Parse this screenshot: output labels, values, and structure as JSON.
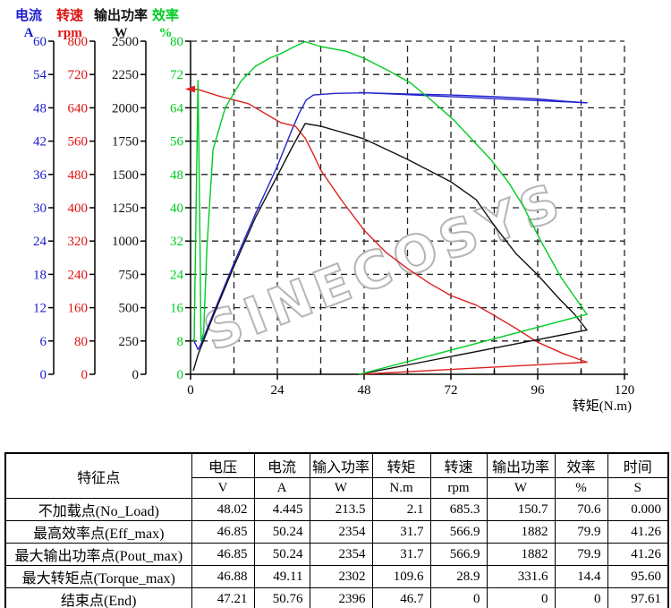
{
  "chart": {
    "watermark": "SINECOSYS",
    "x_axis": {
      "title": "转矩(N.m)",
      "max": 120,
      "major_step": 24,
      "minor_step": 12,
      "major_tick_labels": [
        "0",
        "24",
        "48",
        "72",
        "96",
        "120"
      ]
    },
    "y_axes": [
      {
        "name": "电流",
        "unit": "A",
        "color": "#1a1acc",
        "min": 0,
        "max": 60,
        "step": 6
      },
      {
        "name": "转速",
        "unit": "rpm",
        "color": "#dd1111",
        "min": 0,
        "max": 800,
        "step": 80
      },
      {
        "name": "输出功率",
        "unit": "W",
        "color": "#111111",
        "min": 0,
        "max": 2500,
        "step": 250
      },
      {
        "name": "效率",
        "unit": "%",
        "color": "#00cc22",
        "min": 0,
        "max": 80,
        "step": 8
      }
    ]
  },
  "chart_data": {
    "type": "line",
    "title": "",
    "xlabel": "转矩(N.m)",
    "x_range": [
      0,
      120
    ],
    "grid": "dashed grid every 12 N.m (x) and every 1/10 of full scale (y)",
    "legend_position": "none (axis labels on top-left, one colored axis per series)",
    "series": [
      {
        "name": "电流(A)",
        "axis": 0,
        "color": "#2222cc",
        "axis_range": [
          0,
          60
        ],
        "points": [
          [
            0.8,
            6.2
          ],
          [
            2.1,
            4.45
          ],
          [
            3,
            5.6
          ],
          [
            6,
            10.5
          ],
          [
            12,
            20
          ],
          [
            18,
            29
          ],
          [
            24,
            37.5
          ],
          [
            28,
            44
          ],
          [
            30,
            47
          ],
          [
            32,
            49.4
          ],
          [
            34,
            50.3
          ],
          [
            40,
            50.6
          ],
          [
            48,
            50.7
          ],
          [
            60,
            50.5
          ],
          [
            72,
            50.3
          ],
          [
            84,
            50.0
          ],
          [
            96,
            49.6
          ],
          [
            103,
            49.2
          ],
          [
            109.6,
            48.9
          ]
        ]
      },
      {
        "name": "电流(A) 回程",
        "axis": 0,
        "color": "#2222cc",
        "axis_range": [
          0,
          60
        ],
        "points": [
          [
            109.6,
            48.9
          ],
          [
            46.7,
            50.76
          ]
        ]
      },
      {
        "name": "转速(rpm)",
        "axis": 1,
        "color": "#dd2222",
        "axis_range": [
          0,
          800
        ],
        "start_marker": "left-arrow",
        "points": [
          [
            0.5,
            685
          ],
          [
            2.1,
            684
          ],
          [
            8,
            668
          ],
          [
            16,
            650
          ],
          [
            25,
            604
          ],
          [
            29,
            596
          ],
          [
            31.7,
            567
          ],
          [
            34,
            528
          ],
          [
            36,
            490
          ],
          [
            42,
            415
          ],
          [
            48,
            346
          ],
          [
            54,
            293
          ],
          [
            60,
            254
          ],
          [
            66,
            219
          ],
          [
            72,
            189
          ],
          [
            79,
            166
          ],
          [
            84,
            141
          ],
          [
            90,
            110
          ],
          [
            96,
            77
          ],
          [
            103,
            50
          ],
          [
            109.6,
            29
          ]
        ]
      },
      {
        "name": "转速(rpm) 回程",
        "axis": 1,
        "color": "#dd2222",
        "axis_range": [
          0,
          800
        ],
        "points": [
          [
            109.6,
            29
          ],
          [
            46.7,
            0
          ]
        ]
      },
      {
        "name": "输出功率(W)",
        "axis": 2,
        "color": "#111111",
        "axis_range": [
          0,
          2500
        ],
        "points": [
          [
            0.8,
            30
          ],
          [
            2.1,
            150
          ],
          [
            6,
            420
          ],
          [
            12,
            810
          ],
          [
            18,
            1180
          ],
          [
            24,
            1490
          ],
          [
            28,
            1700
          ],
          [
            31.7,
            1882
          ],
          [
            36,
            1862
          ],
          [
            42,
            1815
          ],
          [
            48,
            1767
          ],
          [
            60,
            1613
          ],
          [
            72,
            1445
          ],
          [
            79,
            1310
          ],
          [
            84,
            1116
          ],
          [
            90,
            905
          ],
          [
            96,
            746
          ],
          [
            102,
            565
          ],
          [
            106,
            457
          ],
          [
            109.6,
            332
          ]
        ]
      },
      {
        "name": "输出功率(W) 回程",
        "axis": 2,
        "color": "#111111",
        "axis_range": [
          0,
          2500
        ],
        "points": [
          [
            109.6,
            332
          ],
          [
            46.7,
            0
          ]
        ]
      },
      {
        "name": "效率(%)",
        "axis": 3,
        "color": "#00cc22",
        "axis_range": [
          0,
          80
        ],
        "points": [
          [
            1.0,
            8
          ],
          [
            2.05,
            70.6
          ],
          [
            2.5,
            40
          ],
          [
            2.9,
            8
          ],
          [
            3.6,
            10
          ],
          [
            4.5,
            30
          ],
          [
            6.2,
            54
          ],
          [
            9.6,
            64
          ],
          [
            14,
            70.5
          ],
          [
            18,
            74
          ],
          [
            22,
            76
          ],
          [
            25,
            77
          ],
          [
            28.5,
            78.6
          ],
          [
            31.7,
            79.9
          ],
          [
            36,
            78.7
          ],
          [
            43,
            77.6
          ],
          [
            48,
            75.9
          ],
          [
            55,
            72.8
          ],
          [
            61,
            69.9
          ],
          [
            67,
            65.5
          ],
          [
            73,
            60.9
          ],
          [
            83,
            51.6
          ],
          [
            88,
            46
          ],
          [
            92,
            40.4
          ],
          [
            97,
            31.8
          ],
          [
            102.5,
            23.2
          ],
          [
            109.6,
            14.4
          ]
        ]
      },
      {
        "name": "效率(%) 回程",
        "axis": 3,
        "color": "#00cc22",
        "axis_range": [
          0,
          80
        ],
        "points": [
          [
            109.6,
            14.4
          ],
          [
            46.7,
            0
          ]
        ]
      }
    ]
  },
  "table": {
    "corner_label": "特征点",
    "columns": [
      {
        "name": "电压",
        "unit": "V"
      },
      {
        "name": "电流",
        "unit": "A"
      },
      {
        "name": "输入功率",
        "unit": "W"
      },
      {
        "name": "转矩",
        "unit": "N.m"
      },
      {
        "name": "转速",
        "unit": "rpm"
      },
      {
        "name": "输出功率",
        "unit": "W"
      },
      {
        "name": "效率",
        "unit": "%"
      },
      {
        "name": "时间",
        "unit": "S"
      }
    ],
    "rows": [
      {
        "label": "不加载点(No_Load)",
        "values": [
          "48.02",
          "4.445",
          "213.5",
          "2.1",
          "685.3",
          "150.7",
          "70.6",
          "0.000"
        ]
      },
      {
        "label": "最高效率点(Eff_max)",
        "values": [
          "46.85",
          "50.24",
          "2354",
          "31.7",
          "566.9",
          "1882",
          "79.9",
          "41.26"
        ]
      },
      {
        "label": "最大输出功率点(Pout_max)",
        "values": [
          "46.85",
          "50.24",
          "2354",
          "31.7",
          "566.9",
          "1882",
          "79.9",
          "41.26"
        ]
      },
      {
        "label": "最大转矩点(Torque_max)",
        "values": [
          "46.88",
          "49.11",
          "2302",
          "109.6",
          "28.9",
          "331.6",
          "14.4",
          "95.60"
        ]
      },
      {
        "label": "结束点(End)",
        "values": [
          "47.21",
          "50.76",
          "2396",
          "46.7",
          "0",
          "0",
          "0",
          "97.61"
        ]
      }
    ]
  }
}
